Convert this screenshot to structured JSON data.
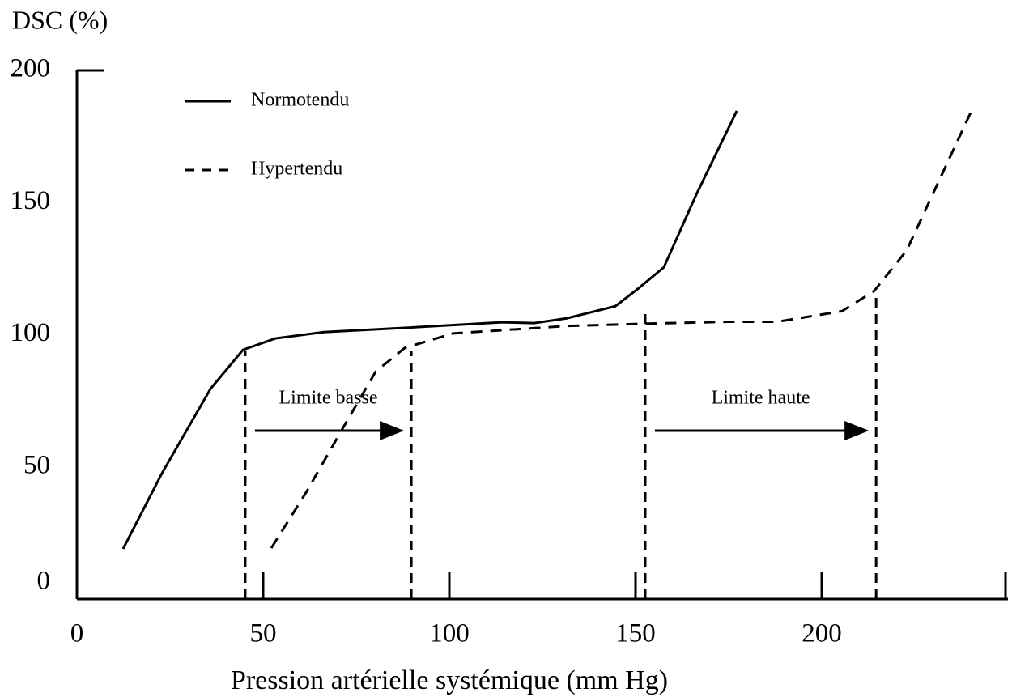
{
  "chart_data": {
    "type": "line",
    "ylabel": "DSC (%)",
    "xlabel": "Pression artérielle systémique (mm Hg)",
    "xlim": [
      0,
      250
    ],
    "ylim": [
      0,
      200
    ],
    "xticks": [
      0,
      50,
      100,
      150,
      200
    ],
    "yticks": [
      0,
      50,
      100,
      150,
      200
    ],
    "legend": "top-left",
    "series": [
      {
        "name": "Normotendu",
        "color": "#000000",
        "dash": "solid",
        "x": [
          12.4,
          22.8,
          35.9,
          44.6,
          53.3,
          66.3,
          88,
          114.1,
          122.8,
          131.5,
          144.6,
          151.1,
          157.6,
          166.3,
          177.2
        ],
        "values": [
          19,
          47.5,
          79.6,
          94.3,
          98.6,
          101,
          102.6,
          104.7,
          104.4,
          106.2,
          110.8,
          117.9,
          125.5,
          153,
          184.7
        ]
      },
      {
        "name": "Hypertendu",
        "color": "#000000",
        "dash": "dashed",
        "x": [
          52.2,
          61.7,
          70.4,
          80.2,
          88,
          101,
          131.5,
          153.3,
          175,
          188,
          205.4,
          214.1,
          222.8,
          240.2
        ],
        "values": [
          19.3,
          40.7,
          62.2,
          86,
          95,
          100.5,
          103.3,
          104.2,
          104.9,
          104.9,
          108.9,
          116.6,
          131.9,
          184.7
        ]
      }
    ],
    "limits": [
      {
        "label": "Limite basse",
        "x": [
          45.2,
          89.8
        ],
        "y": [
          94,
          94
        ]
      },
      {
        "label": "Limite haute",
        "x": [
          152.6,
          214.6
        ],
        "y": [
          110,
          116
        ]
      }
    ]
  }
}
